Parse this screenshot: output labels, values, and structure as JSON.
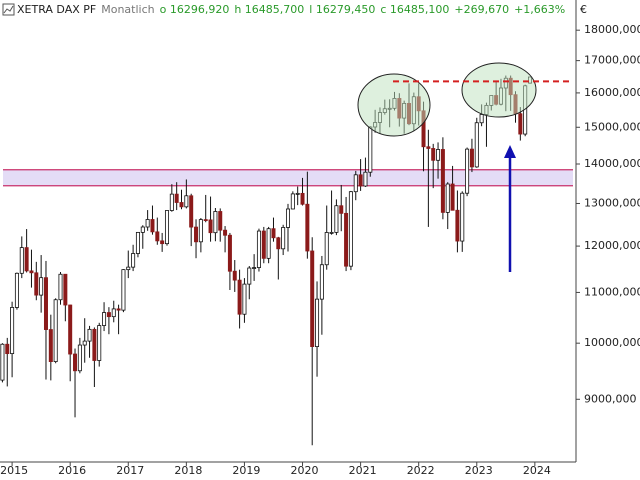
{
  "chart_data": {
    "type": "candlestick",
    "header": [
      "XETRA DAX PF",
      "Monatlich",
      "o 16296,920",
      "h 16485,700",
      "l 16279,450",
      "c 16485,100",
      "+269,670",
      "+1,663%"
    ],
    "currency": "€",
    "log_scale": true,
    "ylim": [
      8000,
      19050
    ],
    "yticks": [
      {
        "value": 9000,
        "label": "9000,000"
      },
      {
        "value": 10000,
        "label": "10000,000"
      },
      {
        "value": 11000,
        "label": "11000,000"
      },
      {
        "value": 12000,
        "label": "12000,000"
      },
      {
        "value": 13000,
        "label": "13000,000"
      },
      {
        "value": 14000,
        "label": "14000,000"
      },
      {
        "value": 15000,
        "label": "15000,000"
      },
      {
        "value": 16000,
        "label": "16000,000"
      },
      {
        "value": 17000,
        "label": "17000,000"
      },
      {
        "value": 18000,
        "label": "18000,000"
      }
    ],
    "xlim": [
      0,
      119
    ],
    "xticks": [
      {
        "value": 2,
        "label": "2015"
      },
      {
        "value": 14,
        "label": "2016"
      },
      {
        "value": 26,
        "label": "2017"
      },
      {
        "value": 38,
        "label": "2018"
      },
      {
        "value": 50,
        "label": "2019"
      },
      {
        "value": 62,
        "label": "2020"
      },
      {
        "value": 74,
        "label": "2021"
      },
      {
        "value": 86,
        "label": "2022"
      },
      {
        "value": 98,
        "label": "2023"
      },
      {
        "value": 110,
        "label": "2024"
      }
    ],
    "up_color": "#ffffff",
    "down_color": "#8b1a1a",
    "resistance_level": 16350,
    "resistance_color": "#d42020",
    "zone": [
      13440,
      13850
    ],
    "zone_color": "#e4dcf6",
    "zone_border": "#c8306a",
    "candles": [
      [
        9330,
        10000,
        9290,
        9980
      ],
      [
        9980,
        10100,
        9220,
        9806
      ],
      [
        9806,
        10810,
        9380,
        10694
      ],
      [
        10694,
        11420,
        10650,
        11402
      ],
      [
        11402,
        12220,
        11300,
        11966
      ],
      [
        11966,
        12390,
        11420,
        11454
      ],
      [
        11454,
        11920,
        11100,
        11413
      ],
      [
        11413,
        11650,
        10840,
        10945
      ],
      [
        10945,
        11800,
        10590,
        11309
      ],
      [
        11309,
        11670,
        9340,
        10259
      ],
      [
        10259,
        10550,
        9325,
        9660
      ],
      [
        9660,
        10880,
        9630,
        10850
      ],
      [
        10850,
        11430,
        10750,
        11382
      ],
      [
        11382,
        11380,
        10420,
        10743
      ],
      [
        10743,
        10750,
        9310,
        9798
      ],
      [
        9798,
        9900,
        8700,
        9495
      ],
      [
        9495,
        10100,
        9450,
        9965
      ],
      [
        9965,
        10480,
        9640,
        10039
      ],
      [
        10039,
        10330,
        9730,
        10263
      ],
      [
        10263,
        10300,
        9210,
        9680
      ],
      [
        9680,
        10390,
        9570,
        10337
      ],
      [
        10337,
        10800,
        10230,
        10592
      ],
      [
        10592,
        10700,
        10170,
        10511
      ],
      [
        10511,
        10830,
        10400,
        10665
      ],
      [
        10665,
        10750,
        10170,
        10640
      ],
      [
        10640,
        11490,
        10600,
        11481
      ],
      [
        11481,
        11900,
        11300,
        11535
      ],
      [
        11535,
        12030,
        11450,
        11834
      ],
      [
        11834,
        12310,
        11750,
        12313
      ],
      [
        12313,
        12480,
        11940,
        12438
      ],
      [
        12438,
        12840,
        12350,
        12615
      ],
      [
        12615,
        12950,
        12260,
        12325
      ],
      [
        12325,
        12660,
        12030,
        12118
      ],
      [
        12118,
        12300,
        11870,
        12055
      ],
      [
        12055,
        12830,
        12010,
        12829
      ],
      [
        12829,
        13480,
        12800,
        13230
      ],
      [
        13230,
        13530,
        12840,
        13024
      ],
      [
        13024,
        13340,
        12860,
        12918
      ],
      [
        12918,
        13600,
        12880,
        13189
      ],
      [
        13189,
        13240,
        12000,
        12436
      ],
      [
        12436,
        12620,
        11730,
        12097
      ],
      [
        12097,
        12650,
        11860,
        12612
      ],
      [
        12612,
        13210,
        12550,
        12605
      ],
      [
        12605,
        13170,
        12100,
        12306
      ],
      [
        12306,
        12890,
        12110,
        12806
      ],
      [
        12806,
        12880,
        12100,
        12364
      ],
      [
        12364,
        12460,
        11860,
        12247
      ],
      [
        12247,
        12300,
        11050,
        11447
      ],
      [
        11447,
        11690,
        11010,
        11257
      ],
      [
        11257,
        11480,
        10280,
        10559
      ],
      [
        10559,
        11300,
        10390,
        11173
      ],
      [
        11173,
        11560,
        10860,
        11516
      ],
      [
        11516,
        11820,
        11240,
        11526
      ],
      [
        11526,
        12400,
        11440,
        12344
      ],
      [
        12344,
        12440,
        11620,
        11727
      ],
      [
        11727,
        12440,
        11620,
        12399
      ],
      [
        12399,
        12660,
        12100,
        12189
      ],
      [
        12189,
        12210,
        11270,
        11939
      ],
      [
        11939,
        12490,
        11800,
        12428
      ],
      [
        12428,
        12990,
        11880,
        12866
      ],
      [
        12866,
        13300,
        12860,
        13236
      ],
      [
        13236,
        13420,
        12960,
        13249
      ],
      [
        13249,
        13640,
        12950,
        12981
      ],
      [
        12981,
        13800,
        11720,
        11890
      ],
      [
        11890,
        12200,
        8255,
        9936
      ],
      [
        9936,
        11230,
        9390,
        10862
      ],
      [
        10862,
        11780,
        10160,
        11587
      ],
      [
        11587,
        12950,
        11480,
        12311
      ],
      [
        12311,
        13320,
        12260,
        12313
      ],
      [
        12313,
        13100,
        12250,
        12945
      ],
      [
        12945,
        13460,
        12340,
        12761
      ],
      [
        12761,
        13160,
        11450,
        11556
      ],
      [
        11556,
        13310,
        11470,
        13291
      ],
      [
        13291,
        13820,
        13080,
        13719
      ],
      [
        13719,
        14130,
        13310,
        13433
      ],
      [
        13433,
        14170,
        13410,
        13786
      ],
      [
        13786,
        15030,
        13670,
        15008
      ],
      [
        15008,
        15500,
        14850,
        15136
      ],
      [
        15136,
        15570,
        14820,
        15421
      ],
      [
        15421,
        15800,
        15360,
        15531
      ],
      [
        15531,
        15810,
        15000,
        15544
      ],
      [
        15544,
        16030,
        15480,
        15835
      ],
      [
        15835,
        15990,
        15020,
        15261
      ],
      [
        15261,
        15770,
        14820,
        15688
      ],
      [
        15688,
        16290,
        15060,
        15100
      ],
      [
        15100,
        16010,
        14900,
        15885
      ],
      [
        15885,
        16290,
        15050,
        15471
      ],
      [
        15471,
        15740,
        13810,
        14461
      ],
      [
        14461,
        14930,
        12440,
        14415
      ],
      [
        14415,
        14540,
        13380,
        14098
      ],
      [
        14098,
        14580,
        13620,
        14388
      ],
      [
        14388,
        14720,
        12620,
        12784
      ],
      [
        12784,
        13530,
        12390,
        13484
      ],
      [
        13484,
        13950,
        12860,
        12835
      ],
      [
        12835,
        13320,
        11860,
        12114
      ],
      [
        12114,
        13300,
        11870,
        13253
      ],
      [
        13253,
        14440,
        13180,
        14397
      ],
      [
        14397,
        14680,
        13790,
        13924
      ],
      [
        13924,
        15270,
        13900,
        15128
      ],
      [
        15128,
        15660,
        15030,
        15365
      ],
      [
        15365,
        15710,
        14460,
        15629
      ],
      [
        15629,
        15920,
        15480,
        15922
      ],
      [
        15922,
        16330,
        15630,
        15664
      ],
      [
        15664,
        16430,
        15630,
        16148
      ],
      [
        16148,
        16530,
        15460,
        16447
      ],
      [
        16447,
        16530,
        15470,
        15947
      ],
      [
        15947,
        16050,
        15130,
        15387
      ],
      [
        15387,
        15580,
        14630,
        14810
      ],
      [
        14810,
        16250,
        14750,
        16215
      ],
      [
        16296.92,
        16485.7,
        16279.45,
        16485.1
      ]
    ]
  }
}
